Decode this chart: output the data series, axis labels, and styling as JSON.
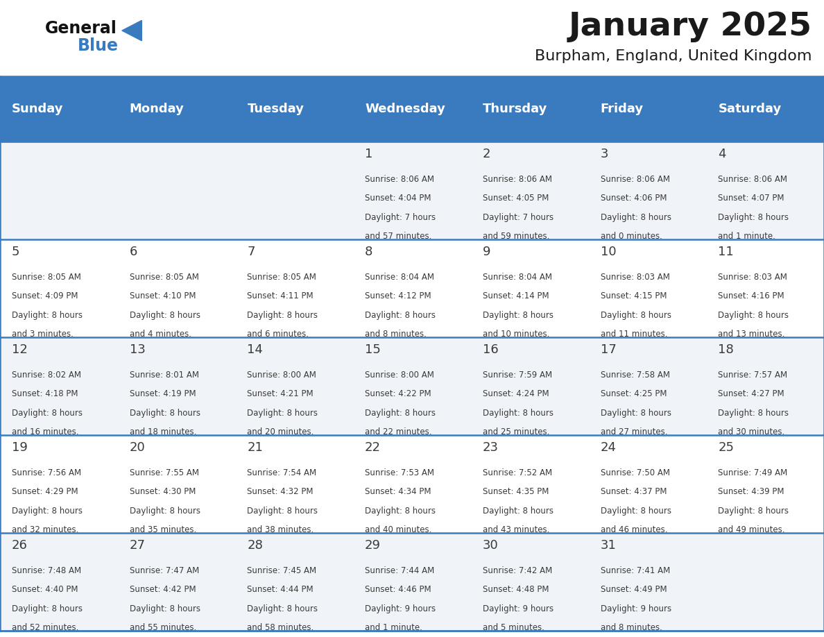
{
  "title": "January 2025",
  "subtitle": "Burpham, England, United Kingdom",
  "header_color": "#3a7bbf",
  "header_text_color": "#ffffff",
  "cell_bg_even": "#f0f4f8",
  "cell_bg_odd": "#ffffff",
  "day_number_color": "#3a3a3a",
  "text_color": "#3a3a3a",
  "border_color": "#3a7bbf",
  "days_of_week": [
    "Sunday",
    "Monday",
    "Tuesday",
    "Wednesday",
    "Thursday",
    "Friday",
    "Saturday"
  ],
  "weeks": [
    [
      {
        "day": 0,
        "sunrise": "",
        "sunset": "",
        "daylight": ""
      },
      {
        "day": 0,
        "sunrise": "",
        "sunset": "",
        "daylight": ""
      },
      {
        "day": 0,
        "sunrise": "",
        "sunset": "",
        "daylight": ""
      },
      {
        "day": 1,
        "sunrise": "8:06 AM",
        "sunset": "4:04 PM",
        "daylight": "7 hours\nand 57 minutes."
      },
      {
        "day": 2,
        "sunrise": "8:06 AM",
        "sunset": "4:05 PM",
        "daylight": "7 hours\nand 59 minutes."
      },
      {
        "day": 3,
        "sunrise": "8:06 AM",
        "sunset": "4:06 PM",
        "daylight": "8 hours\nand 0 minutes."
      },
      {
        "day": 4,
        "sunrise": "8:06 AM",
        "sunset": "4:07 PM",
        "daylight": "8 hours\nand 1 minute."
      }
    ],
    [
      {
        "day": 5,
        "sunrise": "8:05 AM",
        "sunset": "4:09 PM",
        "daylight": "8 hours\nand 3 minutes."
      },
      {
        "day": 6,
        "sunrise": "8:05 AM",
        "sunset": "4:10 PM",
        "daylight": "8 hours\nand 4 minutes."
      },
      {
        "day": 7,
        "sunrise": "8:05 AM",
        "sunset": "4:11 PM",
        "daylight": "8 hours\nand 6 minutes."
      },
      {
        "day": 8,
        "sunrise": "8:04 AM",
        "sunset": "4:12 PM",
        "daylight": "8 hours\nand 8 minutes."
      },
      {
        "day": 9,
        "sunrise": "8:04 AM",
        "sunset": "4:14 PM",
        "daylight": "8 hours\nand 10 minutes."
      },
      {
        "day": 10,
        "sunrise": "8:03 AM",
        "sunset": "4:15 PM",
        "daylight": "8 hours\nand 11 minutes."
      },
      {
        "day": 11,
        "sunrise": "8:03 AM",
        "sunset": "4:16 PM",
        "daylight": "8 hours\nand 13 minutes."
      }
    ],
    [
      {
        "day": 12,
        "sunrise": "8:02 AM",
        "sunset": "4:18 PM",
        "daylight": "8 hours\nand 16 minutes."
      },
      {
        "day": 13,
        "sunrise": "8:01 AM",
        "sunset": "4:19 PM",
        "daylight": "8 hours\nand 18 minutes."
      },
      {
        "day": 14,
        "sunrise": "8:00 AM",
        "sunset": "4:21 PM",
        "daylight": "8 hours\nand 20 minutes."
      },
      {
        "day": 15,
        "sunrise": "8:00 AM",
        "sunset": "4:22 PM",
        "daylight": "8 hours\nand 22 minutes."
      },
      {
        "day": 16,
        "sunrise": "7:59 AM",
        "sunset": "4:24 PM",
        "daylight": "8 hours\nand 25 minutes."
      },
      {
        "day": 17,
        "sunrise": "7:58 AM",
        "sunset": "4:25 PM",
        "daylight": "8 hours\nand 27 minutes."
      },
      {
        "day": 18,
        "sunrise": "7:57 AM",
        "sunset": "4:27 PM",
        "daylight": "8 hours\nand 30 minutes."
      }
    ],
    [
      {
        "day": 19,
        "sunrise": "7:56 AM",
        "sunset": "4:29 PM",
        "daylight": "8 hours\nand 32 minutes."
      },
      {
        "day": 20,
        "sunrise": "7:55 AM",
        "sunset": "4:30 PM",
        "daylight": "8 hours\nand 35 minutes."
      },
      {
        "day": 21,
        "sunrise": "7:54 AM",
        "sunset": "4:32 PM",
        "daylight": "8 hours\nand 38 minutes."
      },
      {
        "day": 22,
        "sunrise": "7:53 AM",
        "sunset": "4:34 PM",
        "daylight": "8 hours\nand 40 minutes."
      },
      {
        "day": 23,
        "sunrise": "7:52 AM",
        "sunset": "4:35 PM",
        "daylight": "8 hours\nand 43 minutes."
      },
      {
        "day": 24,
        "sunrise": "7:50 AM",
        "sunset": "4:37 PM",
        "daylight": "8 hours\nand 46 minutes."
      },
      {
        "day": 25,
        "sunrise": "7:49 AM",
        "sunset": "4:39 PM",
        "daylight": "8 hours\nand 49 minutes."
      }
    ],
    [
      {
        "day": 26,
        "sunrise": "7:48 AM",
        "sunset": "4:40 PM",
        "daylight": "8 hours\nand 52 minutes."
      },
      {
        "day": 27,
        "sunrise": "7:47 AM",
        "sunset": "4:42 PM",
        "daylight": "8 hours\nand 55 minutes."
      },
      {
        "day": 28,
        "sunrise": "7:45 AM",
        "sunset": "4:44 PM",
        "daylight": "8 hours\nand 58 minutes."
      },
      {
        "day": 29,
        "sunrise": "7:44 AM",
        "sunset": "4:46 PM",
        "daylight": "9 hours\nand 1 minute."
      },
      {
        "day": 30,
        "sunrise": "7:42 AM",
        "sunset": "4:48 PM",
        "daylight": "9 hours\nand 5 minutes."
      },
      {
        "day": 31,
        "sunrise": "7:41 AM",
        "sunset": "4:49 PM",
        "daylight": "9 hours\nand 8 minutes."
      },
      {
        "day": 0,
        "sunrise": "",
        "sunset": "",
        "daylight": ""
      }
    ]
  ]
}
